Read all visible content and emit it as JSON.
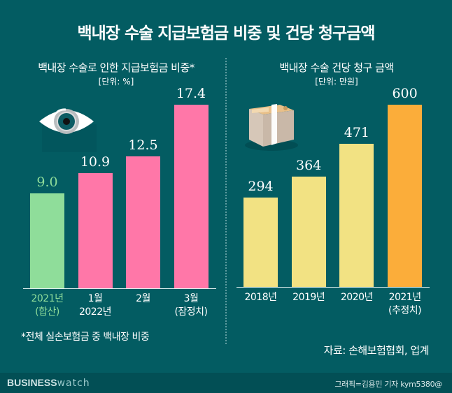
{
  "title": "백내장 수술 지급보험금 비중 및 건당 청구금액",
  "colors": {
    "background": "#035c62",
    "green": "#8fdd9a",
    "pink": "#ff77a8",
    "yellow": "#f2e283",
    "orange": "#fbad3a",
    "green_label": "#8fdd9a",
    "white": "#ffffff"
  },
  "left_panel": {
    "subtitle": "백내장 수술로 인한 지급보험금 비중*",
    "unit": "[단위: %]",
    "icon": "eye-icon",
    "footnote": "*전체 실손보험금 중 백내장 비중"
  },
  "right_panel": {
    "subtitle": "백내장 수술 건당 청구 금액",
    "unit": "[단위: 만원]",
    "icon": "money-bundle-icon"
  },
  "source": "자료: 손해보험협회, 업계",
  "footer": {
    "brand_bold": "BUSINESS",
    "brand_light": "watch",
    "credit": "그래픽=김용민 기자 kym5380@"
  },
  "chart_data": [
    {
      "type": "bar",
      "title": "백내장 수술로 인한 지급보험금 비중*",
      "unit": "%",
      "categories": [
        {
          "line1": "2021년",
          "line2": "(합산)"
        },
        {
          "line1": "1월",
          "line2": "2022년"
        },
        {
          "line1": "2월",
          "line2": ""
        },
        {
          "line1": "3월",
          "line2": "(잠정치)"
        }
      ],
      "values": [
        9.0,
        10.9,
        12.5,
        17.4
      ],
      "value_labels": [
        "9.0",
        "10.9",
        "12.5",
        "17.4"
      ],
      "bar_colors": [
        "#8fdd9a",
        "#ff77a8",
        "#ff77a8",
        "#ff77a8"
      ],
      "label_colors": [
        "#8fdd9a",
        "#ffffff",
        "#ffffff",
        "#ffffff"
      ],
      "xlabel": "",
      "ylabel": "",
      "ylim": [
        0,
        17.4
      ],
      "grid": false,
      "legend": "none"
    },
    {
      "type": "bar",
      "title": "백내장 수술 건당 청구 금액",
      "unit": "만원",
      "categories": [
        {
          "line1": "2018년",
          "line2": ""
        },
        {
          "line1": "2019년",
          "line2": ""
        },
        {
          "line1": "2020년",
          "line2": ""
        },
        {
          "line1": "2021년",
          "line2": "(추정치)"
        }
      ],
      "values": [
        294,
        364,
        471,
        600
      ],
      "value_labels": [
        "294",
        "364",
        "471",
        "600"
      ],
      "bar_colors": [
        "#f2e283",
        "#f2e283",
        "#f2e283",
        "#fbad3a"
      ],
      "label_colors": [
        "#ffffff",
        "#ffffff",
        "#ffffff",
        "#ffffff"
      ],
      "xlabel": "",
      "ylabel": "",
      "ylim": [
        0,
        600
      ],
      "grid": false,
      "legend": "none"
    }
  ]
}
